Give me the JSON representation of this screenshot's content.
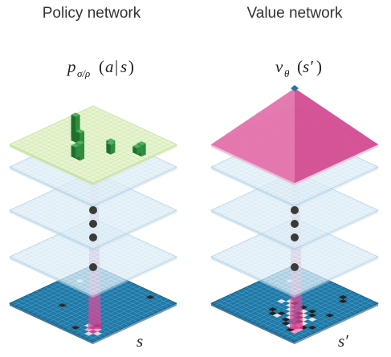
{
  "policy": {
    "title": "Policy network",
    "formula_p": "p",
    "formula_sub": "σ/ρ",
    "formula_open": "(",
    "formula_a": "a",
    "formula_bar": "|",
    "formula_s": "s",
    "formula_close": ")",
    "input_label": "s"
  },
  "value": {
    "title": "Value network",
    "formula_v": "v",
    "formula_sub": "θ",
    "formula_open": "(",
    "formula_s": "s′",
    "formula_close": ")",
    "input_label": "s′"
  },
  "colors": {
    "board_blue": "#1f78a6",
    "grid_line": "#5aa8cf",
    "hidden_layer": "#d6e8f3",
    "policy_green": "#e6f4cf",
    "value_pink": "#e0559a",
    "dot": "#3a3a3a",
    "highlight_pink": "#e23d8f"
  }
}
